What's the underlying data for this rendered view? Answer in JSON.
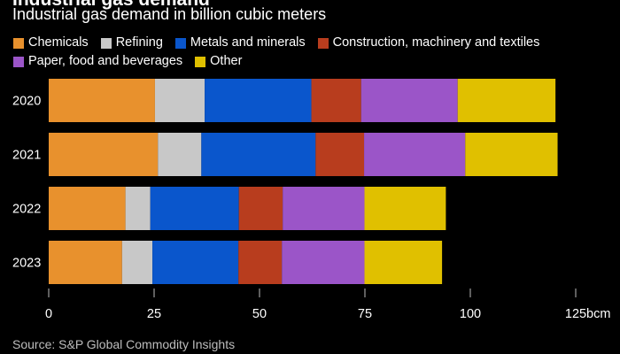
{
  "header": {
    "partial_title": "Industrial gas demand",
    "subtitle": "Industrial gas demand in billion cubic meters"
  },
  "footer": {
    "source": "Source: S&P Global Commodity Insights"
  },
  "chart_data": {
    "type": "bar",
    "orientation": "horizontal",
    "stacked": true,
    "title": "",
    "subtitle": "Industrial gas demand in billion cubic meters",
    "categories": [
      "2020",
      "2021",
      "2022",
      "2023"
    ],
    "x_unit": "bcm",
    "xlim": [
      0,
      125
    ],
    "x_ticks": [
      0,
      25,
      50,
      75,
      100,
      125
    ],
    "x_tick_labels": [
      "0",
      "25",
      "50",
      "75",
      "100",
      "125"
    ],
    "grid": false,
    "legend_position": "top",
    "series": [
      {
        "name": "Chemicals",
        "color": "#e8912d",
        "values": [
          25.2,
          25.9,
          18.2,
          17.4
        ]
      },
      {
        "name": "Refining",
        "color": "#c8c8c8",
        "values": [
          11.8,
          10.3,
          5.9,
          7.2
        ]
      },
      {
        "name": "Metals and minerals",
        "color": "#0a56cc",
        "values": [
          25.3,
          27.1,
          21.0,
          20.4
        ]
      },
      {
        "name": "Construction, machinery and textiles",
        "color": "#b83d1e",
        "values": [
          11.8,
          11.5,
          10.4,
          10.3
        ]
      },
      {
        "name": "Paper, food and beverages",
        "color": "#9b55c8",
        "values": [
          22.9,
          24.0,
          19.4,
          19.6
        ]
      },
      {
        "name": "Other",
        "color": "#e0c000",
        "values": [
          23.2,
          21.9,
          19.3,
          18.4
        ]
      }
    ]
  }
}
